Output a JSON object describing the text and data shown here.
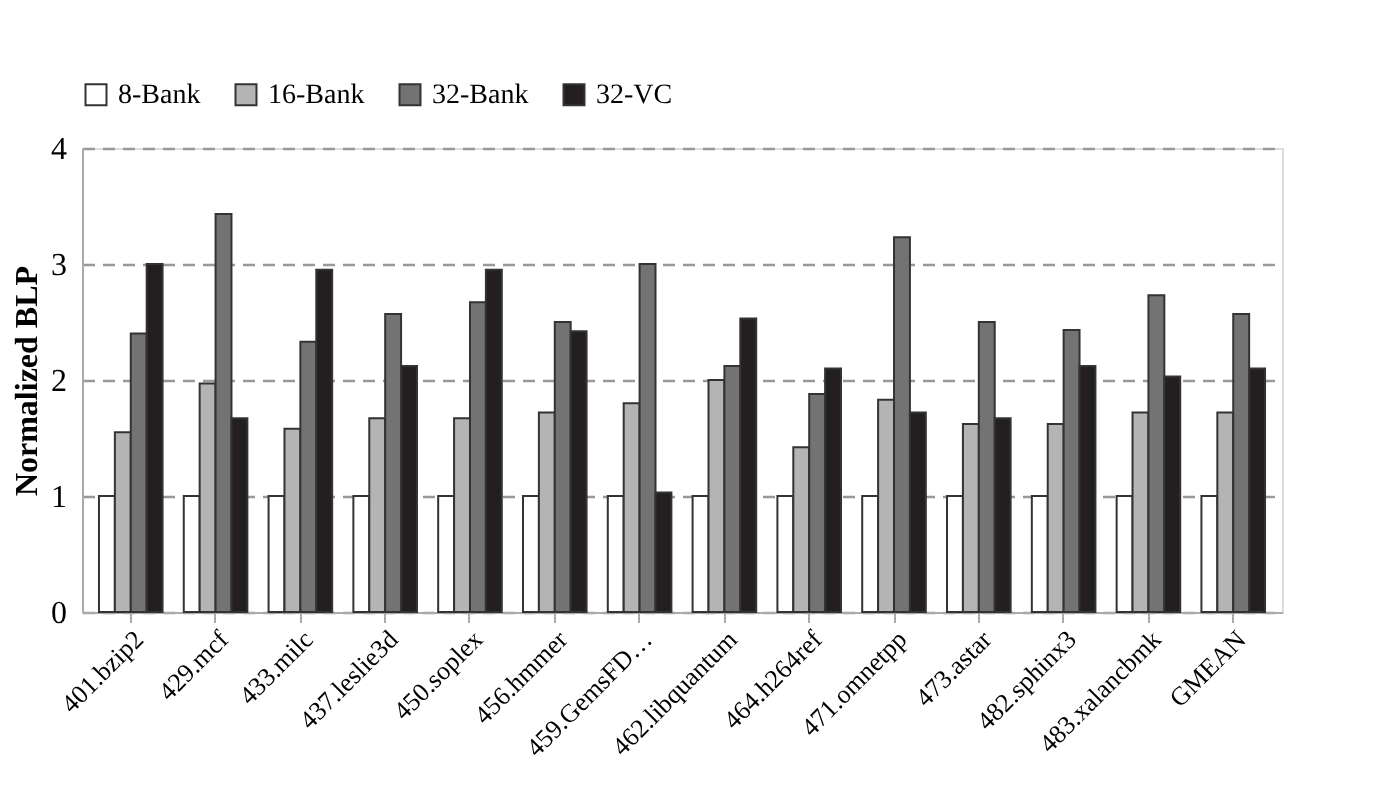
{
  "chart_data": {
    "type": "bar",
    "ylabel": "Normalized BLP",
    "categories": [
      "401.bzip2",
      "429.mcf",
      "433.milc",
      "437.leslie3d",
      "450.soplex",
      "456.hmmer",
      "459.GemsFD…",
      "462.libquantum",
      "464.h264ref",
      "471.omnetpp",
      "473.astar",
      "482.sphinx3",
      "483.xalancbmk",
      "GMEAN"
    ],
    "series": [
      {
        "name": "8-Bank",
        "color": "#ffffff",
        "values": [
          1,
          1,
          1,
          1,
          1,
          1,
          1,
          1,
          1,
          1,
          1,
          1,
          1,
          1
        ]
      },
      {
        "name": "16-Bank",
        "color": "#b4b4b4",
        "values": [
          1.55,
          1.97,
          1.58,
          1.67,
          1.67,
          1.72,
          1.8,
          2.0,
          1.42,
          1.83,
          1.62,
          1.62,
          1.72,
          1.72
        ]
      },
      {
        "name": "32-Bank",
        "color": "#737373",
        "values": [
          2.4,
          3.43,
          2.33,
          2.57,
          2.67,
          2.5,
          3.0,
          2.12,
          1.88,
          3.23,
          2.5,
          2.43,
          2.73,
          2.57
        ]
      },
      {
        "name": "32-VC",
        "color": "#231f20",
        "values": [
          3.0,
          1.67,
          2.95,
          2.12,
          2.95,
          2.42,
          1.03,
          2.53,
          2.1,
          1.72,
          1.67,
          2.12,
          2.03,
          2.1
        ]
      }
    ],
    "ylim": [
      0,
      4
    ],
    "yticks": [
      0,
      1,
      2,
      3,
      4
    ],
    "grid": "y",
    "legend": "top left"
  }
}
